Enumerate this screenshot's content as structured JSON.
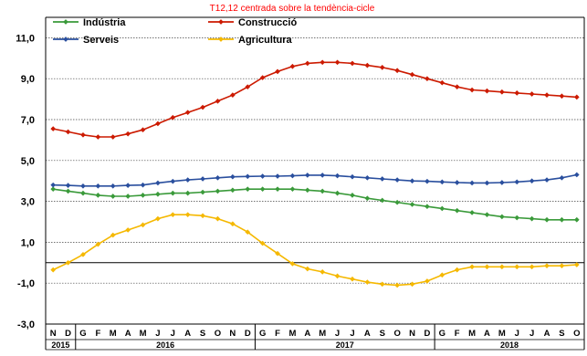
{
  "chart_data": {
    "type": "line",
    "subtitle": "T12,12 centrada sobre la tendència-cicle",
    "ylim": [
      -3.0,
      12.0
    ],
    "yticks": [
      "11,0",
      "9,0",
      "7,0",
      "5,0",
      "3,0",
      "1,0",
      "-1,0",
      "-3,0"
    ],
    "ytick_values": [
      11,
      9,
      7,
      5,
      3,
      1,
      -1,
      -3
    ],
    "grid": true,
    "legend_position": "top-left",
    "months": [
      "N",
      "D",
      "G",
      "F",
      "M",
      "A",
      "M",
      "J",
      "J",
      "A",
      "S",
      "O",
      "N",
      "D",
      "G",
      "F",
      "M",
      "A",
      "M",
      "J",
      "J",
      "A",
      "S",
      "O",
      "N",
      "D",
      "G",
      "F",
      "M",
      "A",
      "M",
      "J",
      "J",
      "A",
      "S",
      "O"
    ],
    "years": [
      {
        "label": "2015",
        "from": 0,
        "to": 1
      },
      {
        "label": "2016",
        "from": 2,
        "to": 13
      },
      {
        "label": "2017",
        "from": 14,
        "to": 25
      },
      {
        "label": "2018",
        "from": 26,
        "to": 35
      }
    ],
    "series": [
      {
        "name": "Indústria",
        "color": "#3a9a3a",
        "values": [
          3.6,
          3.5,
          3.4,
          3.3,
          3.25,
          3.25,
          3.3,
          3.35,
          3.4,
          3.4,
          3.45,
          3.5,
          3.55,
          3.6,
          3.6,
          3.6,
          3.6,
          3.55,
          3.5,
          3.4,
          3.3,
          3.15,
          3.05,
          2.95,
          2.85,
          2.75,
          2.65,
          2.55,
          2.45,
          2.35,
          2.25,
          2.2,
          2.15,
          2.1,
          2.1,
          2.1
        ]
      },
      {
        "name": "Construcció",
        "color": "#cc1a00",
        "values": [
          6.55,
          6.4,
          6.25,
          6.15,
          6.15,
          6.3,
          6.5,
          6.8,
          7.1,
          7.35,
          7.6,
          7.9,
          8.2,
          8.6,
          9.05,
          9.35,
          9.6,
          9.75,
          9.8,
          9.8,
          9.75,
          9.65,
          9.55,
          9.4,
          9.2,
          9.0,
          8.8,
          8.6,
          8.45,
          8.4,
          8.35,
          8.3,
          8.25,
          8.2,
          8.15,
          8.1
        ]
      },
      {
        "name": "Serveis",
        "color": "#2a4f9e",
        "values": [
          3.8,
          3.78,
          3.75,
          3.75,
          3.75,
          3.78,
          3.8,
          3.9,
          3.98,
          4.05,
          4.1,
          4.15,
          4.2,
          4.22,
          4.23,
          4.23,
          4.25,
          4.28,
          4.28,
          4.25,
          4.2,
          4.15,
          4.1,
          4.05,
          4.0,
          3.98,
          3.95,
          3.92,
          3.9,
          3.9,
          3.92,
          3.95,
          4.0,
          4.05,
          4.15,
          4.3
        ]
      },
      {
        "name": "Agricultura",
        "color": "#f5b800",
        "values": [
          -0.35,
          0.0,
          0.4,
          0.9,
          1.35,
          1.6,
          1.85,
          2.15,
          2.35,
          2.35,
          2.3,
          2.15,
          1.9,
          1.5,
          0.95,
          0.45,
          -0.05,
          -0.3,
          -0.45,
          -0.65,
          -0.8,
          -0.95,
          -1.05,
          -1.1,
          -1.05,
          -0.9,
          -0.6,
          -0.35,
          -0.2,
          -0.2,
          -0.2,
          -0.2,
          -0.2,
          -0.15,
          -0.15,
          -0.1
        ]
      }
    ]
  }
}
